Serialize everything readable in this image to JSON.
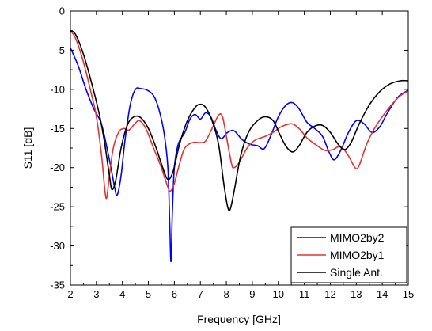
{
  "chart_data": {
    "type": "line",
    "title": "",
    "xlabel": "Frequency [GHz]",
    "ylabel": "S11 [dB]",
    "xlim": [
      2,
      15
    ],
    "ylim": [
      -35,
      0
    ],
    "x_ticks": [
      2,
      3,
      4,
      5,
      6,
      7,
      8,
      9,
      10,
      11,
      12,
      13,
      14,
      15
    ],
    "y_ticks": [
      0,
      -5,
      -10,
      -15,
      -20,
      -25,
      -30,
      -35
    ],
    "x_tick_labels": [
      "2",
      "3",
      "4",
      "5",
      "6",
      "7",
      "8",
      "9",
      "10",
      "11",
      "12",
      "13",
      "14",
      "15"
    ],
    "y_tick_labels": [
      "0",
      "-5",
      "-10",
      "-15",
      "-20",
      "-25",
      "-30",
      "-35"
    ],
    "grid": false,
    "legend_position": "bottom-right",
    "series": [
      {
        "name": "MIMO2by2",
        "color": "#0000ff",
        "points": [
          [
            2.0,
            -4.7
          ],
          [
            2.3,
            -7.0
          ],
          [
            2.6,
            -10.0
          ],
          [
            2.9,
            -12.5
          ],
          [
            3.2,
            -14.5
          ],
          [
            3.5,
            -19.0
          ],
          [
            3.7,
            -22.5
          ],
          [
            3.8,
            -23.5
          ],
          [
            3.95,
            -21.0
          ],
          [
            4.1,
            -16.5
          ],
          [
            4.3,
            -12.0
          ],
          [
            4.5,
            -10.0
          ],
          [
            4.7,
            -9.9
          ],
          [
            4.95,
            -10.1
          ],
          [
            5.2,
            -10.8
          ],
          [
            5.4,
            -12.5
          ],
          [
            5.6,
            -15.5
          ],
          [
            5.75,
            -20.0
          ],
          [
            5.82,
            -27.0
          ],
          [
            5.87,
            -32.0
          ],
          [
            5.92,
            -26.0
          ],
          [
            6.0,
            -20.0
          ],
          [
            6.15,
            -17.0
          ],
          [
            6.4,
            -15.5
          ],
          [
            6.6,
            -13.8
          ],
          [
            6.8,
            -13.2
          ],
          [
            7.0,
            -13.8
          ],
          [
            7.2,
            -13.0
          ],
          [
            7.4,
            -13.5
          ],
          [
            7.6,
            -15.2
          ],
          [
            7.8,
            -16.3
          ],
          [
            8.05,
            -15.5
          ],
          [
            8.3,
            -15.3
          ],
          [
            8.6,
            -16.4
          ],
          [
            8.9,
            -17.0
          ],
          [
            9.2,
            -17.2
          ],
          [
            9.45,
            -17.6
          ],
          [
            9.7,
            -16.0
          ],
          [
            10.0,
            -13.5
          ],
          [
            10.3,
            -12.0
          ],
          [
            10.55,
            -11.7
          ],
          [
            10.8,
            -12.5
          ],
          [
            11.1,
            -14.2
          ],
          [
            11.4,
            -15.0
          ],
          [
            11.7,
            -16.0
          ],
          [
            11.95,
            -18.0
          ],
          [
            12.15,
            -19.0
          ],
          [
            12.4,
            -17.8
          ],
          [
            12.7,
            -15.5
          ],
          [
            13.0,
            -14.0
          ],
          [
            13.3,
            -14.4
          ],
          [
            13.6,
            -15.5
          ],
          [
            13.9,
            -14.8
          ],
          [
            14.2,
            -13.0
          ],
          [
            14.6,
            -11.0
          ],
          [
            15.0,
            -10.1
          ]
        ]
      },
      {
        "name": "MIMO2by1",
        "color": "#e53232",
        "points": [
          [
            2.0,
            -2.5
          ],
          [
            2.2,
            -3.5
          ],
          [
            2.5,
            -6.5
          ],
          [
            2.8,
            -10.5
          ],
          [
            3.0,
            -13.5
          ],
          [
            3.2,
            -18.5
          ],
          [
            3.33,
            -23.0
          ],
          [
            3.4,
            -23.8
          ],
          [
            3.5,
            -21.0
          ],
          [
            3.65,
            -17.5
          ],
          [
            3.85,
            -15.5
          ],
          [
            4.05,
            -15.0
          ],
          [
            4.25,
            -15.2
          ],
          [
            4.45,
            -14.5
          ],
          [
            4.65,
            -14.0
          ],
          [
            4.9,
            -15.0
          ],
          [
            5.2,
            -17.5
          ],
          [
            5.5,
            -20.0
          ],
          [
            5.75,
            -22.5
          ],
          [
            5.85,
            -23.0
          ],
          [
            6.0,
            -22.0
          ],
          [
            6.2,
            -19.5
          ],
          [
            6.4,
            -17.5
          ],
          [
            6.7,
            -16.8
          ],
          [
            7.0,
            -16.8
          ],
          [
            7.2,
            -16.6
          ],
          [
            7.45,
            -15.0
          ],
          [
            7.7,
            -13.3
          ],
          [
            7.85,
            -13.5
          ],
          [
            8.0,
            -16.0
          ],
          [
            8.2,
            -19.5
          ],
          [
            8.3,
            -20.0
          ],
          [
            8.5,
            -19.3
          ],
          [
            8.8,
            -17.5
          ],
          [
            9.1,
            -16.5
          ],
          [
            9.5,
            -16.0
          ],
          [
            9.8,
            -15.5
          ],
          [
            10.1,
            -14.8
          ],
          [
            10.5,
            -14.4
          ],
          [
            10.8,
            -15.0
          ],
          [
            11.1,
            -16.2
          ],
          [
            11.5,
            -17.2
          ],
          [
            11.8,
            -17.8
          ],
          [
            12.1,
            -17.7
          ],
          [
            12.4,
            -17.3
          ],
          [
            12.7,
            -18.5
          ],
          [
            12.95,
            -20.0
          ],
          [
            13.1,
            -19.8
          ],
          [
            13.4,
            -17.0
          ],
          [
            13.7,
            -15.0
          ],
          [
            14.0,
            -13.5
          ],
          [
            14.4,
            -11.8
          ],
          [
            14.7,
            -10.8
          ],
          [
            15.0,
            -10.2
          ]
        ]
      },
      {
        "name": "Single Ant.",
        "color": "#000000",
        "points": [
          [
            2.0,
            -2.5
          ],
          [
            2.2,
            -3.0
          ],
          [
            2.5,
            -5.5
          ],
          [
            2.8,
            -9.0
          ],
          [
            3.1,
            -13.0
          ],
          [
            3.3,
            -16.5
          ],
          [
            3.5,
            -21.0
          ],
          [
            3.6,
            -22.8
          ],
          [
            3.75,
            -21.5
          ],
          [
            3.95,
            -17.5
          ],
          [
            4.2,
            -14.5
          ],
          [
            4.45,
            -13.5
          ],
          [
            4.7,
            -13.6
          ],
          [
            5.0,
            -15.0
          ],
          [
            5.3,
            -17.5
          ],
          [
            5.55,
            -20.0
          ],
          [
            5.75,
            -21.5
          ],
          [
            5.95,
            -20.5
          ],
          [
            6.2,
            -17.0
          ],
          [
            6.5,
            -14.0
          ],
          [
            6.8,
            -12.3
          ],
          [
            7.0,
            -11.9
          ],
          [
            7.2,
            -12.3
          ],
          [
            7.45,
            -14.0
          ],
          [
            7.7,
            -17.0
          ],
          [
            7.9,
            -22.0
          ],
          [
            8.05,
            -25.0
          ],
          [
            8.15,
            -25.3
          ],
          [
            8.3,
            -23.0
          ],
          [
            8.55,
            -18.5
          ],
          [
            8.85,
            -15.5
          ],
          [
            9.2,
            -14.0
          ],
          [
            9.5,
            -13.5
          ],
          [
            9.8,
            -14.0
          ],
          [
            10.05,
            -15.7
          ],
          [
            10.3,
            -17.3
          ],
          [
            10.55,
            -18.0
          ],
          [
            10.8,
            -17.2
          ],
          [
            11.1,
            -15.5
          ],
          [
            11.4,
            -14.7
          ],
          [
            11.7,
            -14.6
          ],
          [
            12.0,
            -15.5
          ],
          [
            12.3,
            -17.0
          ],
          [
            12.55,
            -17.7
          ],
          [
            12.8,
            -16.8
          ],
          [
            13.1,
            -14.5
          ],
          [
            13.5,
            -12.0
          ],
          [
            13.9,
            -10.3
          ],
          [
            14.3,
            -9.3
          ],
          [
            14.7,
            -8.9
          ],
          [
            15.0,
            -8.9
          ]
        ]
      }
    ]
  }
}
